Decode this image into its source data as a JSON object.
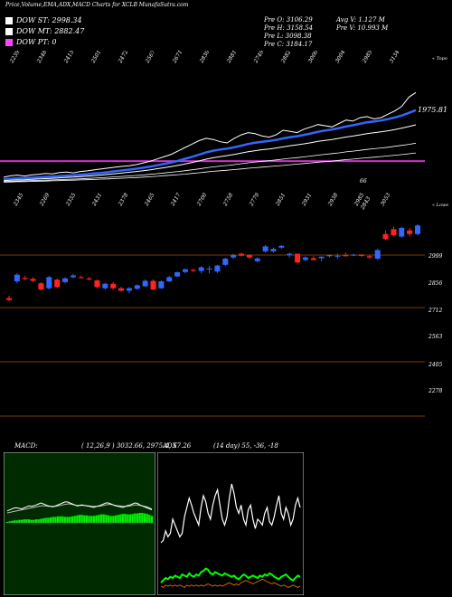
{
  "header": {
    "title": "Price,Volume,EMA,ADX,MACD Charts for XCLB MunafaSutra.com"
  },
  "legend": [
    {
      "label": "DOW ST: 2998.34",
      "color": "#ffffff"
    },
    {
      "label": "DOW MT: 2882.47",
      "color": "#ffffff"
    },
    {
      "label": "DOW PT: 0",
      "color": "#ff44ff"
    }
  ],
  "quote": {
    "open": "Pre O: 3106.29",
    "high": "Pre H: 3158.54",
    "low": "Pre L: 3098.38",
    "close": "Pre C: 3184.17",
    "avg_volume": "Avg V: 1.127 M",
    "volume": "Pre V: 10.993 M"
  },
  "chart_data": [
    {
      "type": "line",
      "panel": "ema",
      "title": "",
      "side_label": "« Topo",
      "last_value_label": "1975.81",
      "top_labels": [
        "2239",
        "2348",
        "2415",
        "2501",
        "2472",
        "2567",
        "2671",
        "2830",
        "2881",
        "2749",
        "2882",
        "3000",
        "3004",
        "2985",
        "3134"
      ],
      "extra_labels": [
        "66"
      ],
      "x": [
        1,
        2,
        3,
        4,
        5,
        6,
        7,
        8,
        9,
        10,
        11,
        12,
        13,
        14,
        15,
        16,
        17,
        18,
        19,
        20,
        21,
        22,
        23,
        24,
        25,
        26,
        27,
        28,
        29,
        30,
        31,
        32,
        33,
        34,
        35,
        36,
        37,
        38,
        39,
        40,
        41,
        42,
        43,
        44,
        45,
        46,
        47,
        48,
        49,
        50,
        51,
        52,
        53,
        54,
        55,
        56,
        57,
        58,
        59,
        60
      ],
      "series": [
        {
          "values": [
            2460,
            2472,
            2478,
            2470,
            2480,
            2485,
            2492,
            2488,
            2500,
            2505,
            2498,
            2510,
            2515,
            2525,
            2532,
            2540,
            2548,
            2555,
            2560,
            2570,
            2585,
            2600,
            2620,
            2640,
            2660,
            2690,
            2720,
            2750,
            2780,
            2800,
            2790,
            2770,
            2760,
            2800,
            2830,
            2850,
            2840,
            2820,
            2810,
            2830,
            2870,
            2860,
            2850,
            2880,
            2900,
            2920,
            2910,
            2900,
            2930,
            2960,
            2950,
            2980,
            2990,
            2970,
            2980,
            3010,
            3040,
            3080,
            3160,
            3200
          ]
        },
        {
          "values": [
            2442,
            2446,
            2450,
            2452,
            2455,
            2458,
            2462,
            2465,
            2469,
            2473,
            2476,
            2481,
            2486,
            2492,
            2498,
            2505,
            2512,
            2519,
            2526,
            2534,
            2543,
            2553,
            2564,
            2576,
            2589,
            2604,
            2621,
            2639,
            2658,
            2677,
            2692,
            2702,
            2710,
            2721,
            2735,
            2750,
            2762,
            2770,
            2777,
            2786,
            2799,
            2810,
            2818,
            2830,
            2843,
            2857,
            2868,
            2877,
            2889,
            2903,
            2914,
            2927,
            2940,
            2948,
            2956,
            2968,
            2982,
            2999,
            3022,
            3046
          ]
        },
        {
          "values": [
            2430,
            2433,
            2436,
            2438,
            2441,
            2444,
            2447,
            2450,
            2454,
            2458,
            2461,
            2465,
            2469,
            2474,
            2479,
            2485,
            2491,
            2497,
            2503,
            2510,
            2517,
            2525,
            2534,
            2543,
            2553,
            2564,
            2576,
            2589,
            2603,
            2617,
            2630,
            2640,
            2649,
            2659,
            2670,
            2682,
            2692,
            2700,
            2707,
            2715,
            2725,
            2735,
            2743,
            2752,
            2762,
            2773,
            2782,
            2790,
            2800,
            2811,
            2820,
            2830,
            2841,
            2849,
            2857,
            2866,
            2877,
            2889,
            2903,
            2918
          ]
        },
        {
          "values": [
            2422,
            2424,
            2426,
            2428,
            2430,
            2432,
            2434,
            2436,
            2439,
            2441,
            2443,
            2446,
            2449,
            2452,
            2455,
            2459,
            2463,
            2467,
            2471,
            2475,
            2480,
            2485,
            2491,
            2497,
            2503,
            2510,
            2517,
            2525,
            2533,
            2542,
            2550,
            2557,
            2563,
            2570,
            2578,
            2586,
            2593,
            2599,
            2605,
            2611,
            2618,
            2625,
            2631,
            2638,
            2645,
            2653,
            2660,
            2666,
            2673,
            2681,
            2688,
            2695,
            2703,
            2709,
            2715,
            2722,
            2730,
            2738,
            2747,
            2757
          ]
        },
        {
          "values": [
            2416,
            2418,
            2420,
            2421,
            2423,
            2425,
            2426,
            2428,
            2430,
            2432,
            2434,
            2436,
            2438,
            2440,
            2443,
            2445,
            2448,
            2451,
            2454,
            2457,
            2461,
            2464,
            2468,
            2473,
            2477,
            2482,
            2487,
            2493,
            2499,
            2505,
            2511,
            2516,
            2521,
            2526,
            2532,
            2538,
            2543,
            2548,
            2553,
            2558,
            2563,
            2569,
            2574,
            2579,
            2585,
            2591,
            2596,
            2601,
            2607,
            2613,
            2618,
            2624,
            2630,
            2635,
            2640,
            2646,
            2652,
            2658,
            2665,
            2672
          ]
        }
      ],
      "purple_line": 2600
    },
    {
      "type": "candlestick",
      "panel": "price",
      "side_label": "« Lowe",
      "top_labels": [
        "2345",
        "2269",
        "2355",
        "2431",
        "2378",
        "2465",
        "2417",
        "2700",
        "2758",
        "2779",
        "2851",
        "2931",
        "2938",
        "2985",
        "3053"
      ],
      "extra_labels": [
        "2843"
      ],
      "ylabels": [
        "2999",
        "2856",
        "2712",
        "2563",
        "2405",
        "2278"
      ],
      "ylim": [
        2200,
        3100
      ],
      "candles": [
        {
          "o": 2760,
          "h": 2770,
          "l": 2748,
          "c": 2752
        },
        {
          "o": 2828,
          "h": 2862,
          "l": 2820,
          "c": 2855
        },
        {
          "o": 2842,
          "h": 2850,
          "l": 2832,
          "c": 2838
        },
        {
          "o": 2838,
          "h": 2845,
          "l": 2825,
          "c": 2830
        },
        {
          "o": 2820,
          "h": 2825,
          "l": 2790,
          "c": 2795
        },
        {
          "o": 2800,
          "h": 2850,
          "l": 2795,
          "c": 2845
        },
        {
          "o": 2835,
          "h": 2840,
          "l": 2800,
          "c": 2805
        },
        {
          "o": 2825,
          "h": 2845,
          "l": 2820,
          "c": 2840
        },
        {
          "o": 2845,
          "h": 2858,
          "l": 2840,
          "c": 2852
        },
        {
          "o": 2845,
          "h": 2852,
          "l": 2840,
          "c": 2842
        },
        {
          "o": 2840,
          "h": 2846,
          "l": 2832,
          "c": 2836
        },
        {
          "o": 2832,
          "h": 2836,
          "l": 2800,
          "c": 2805
        },
        {
          "o": 2800,
          "h": 2822,
          "l": 2795,
          "c": 2818
        },
        {
          "o": 2818,
          "h": 2825,
          "l": 2795,
          "c": 2800
        },
        {
          "o": 2800,
          "h": 2806,
          "l": 2785,
          "c": 2790
        },
        {
          "o": 2790,
          "h": 2805,
          "l": 2780,
          "c": 2800
        },
        {
          "o": 2798,
          "h": 2815,
          "l": 2793,
          "c": 2812
        },
        {
          "o": 2808,
          "h": 2836,
          "l": 2805,
          "c": 2830
        },
        {
          "o": 2830,
          "h": 2836,
          "l": 2792,
          "c": 2795
        },
        {
          "o": 2800,
          "h": 2832,
          "l": 2797,
          "c": 2828
        },
        {
          "o": 2828,
          "h": 2850,
          "l": 2825,
          "c": 2845
        },
        {
          "o": 2848,
          "h": 2868,
          "l": 2845,
          "c": 2865
        },
        {
          "o": 2866,
          "h": 2880,
          "l": 2860,
          "c": 2877
        },
        {
          "o": 2874,
          "h": 2880,
          "l": 2866,
          "c": 2870
        },
        {
          "o": 2870,
          "h": 2890,
          "l": 2860,
          "c": 2885
        },
        {
          "o": 2880,
          "h": 2890,
          "l": 2860,
          "c": 2880
        },
        {
          "o": 2868,
          "h": 2895,
          "l": 2862,
          "c": 2892
        },
        {
          "o": 2895,
          "h": 2925,
          "l": 2890,
          "c": 2920
        },
        {
          "o": 2925,
          "h": 2940,
          "l": 2920,
          "c": 2935
        },
        {
          "o": 2940,
          "h": 2945,
          "l": 2930,
          "c": 2932
        },
        {
          "o": 2935,
          "h": 2938,
          "l": 2920,
          "c": 2925
        },
        {
          "o": 2910,
          "h": 2925,
          "l": 2905,
          "c": 2921
        },
        {
          "o": 2950,
          "h": 2975,
          "l": 2945,
          "c": 2970
        },
        {
          "o": 2950,
          "h": 2965,
          "l": 2945,
          "c": 2960
        },
        {
          "o": 2965,
          "h": 2975,
          "l": 2960,
          "c": 2972
        },
        {
          "o": 2935,
          "h": 2945,
          "l": 2925,
          "c": 2940
        },
        {
          "o": 2940,
          "h": 2942,
          "l": 2900,
          "c": 2905
        },
        {
          "o": 2915,
          "h": 2930,
          "l": 2910,
          "c": 2925
        },
        {
          "o": 2922,
          "h": 2930,
          "l": 2912,
          "c": 2915
        },
        {
          "o": 2922,
          "h": 2930,
          "l": 2910,
          "c": 2928
        },
        {
          "o": 2930,
          "h": 2938,
          "l": 2925,
          "c": 2935
        },
        {
          "o": 2930,
          "h": 2940,
          "l": 2920,
          "c": 2932
        },
        {
          "o": 2935,
          "h": 2945,
          "l": 2928,
          "c": 2930
        },
        {
          "o": 2935,
          "h": 2940,
          "l": 2930,
          "c": 2936
        },
        {
          "o": 2936,
          "h": 2940,
          "l": 2928,
          "c": 2931
        },
        {
          "o": 2930,
          "h": 2935,
          "l": 2920,
          "c": 2925
        },
        {
          "o": 2920,
          "h": 2960,
          "l": 2915,
          "c": 2955
        },
        {
          "o": 3020,
          "h": 3035,
          "l": 2995,
          "c": 3000
        },
        {
          "o": 3040,
          "h": 3050,
          "l": 3010,
          "c": 3015
        },
        {
          "o": 3010,
          "h": 3050,
          "l": 3005,
          "c": 3045
        },
        {
          "o": 3035,
          "h": 3045,
          "l": 3010,
          "c": 3020
        },
        {
          "o": 3020,
          "h": 3060,
          "l": 3015,
          "c": 3055
        }
      ]
    },
    {
      "type": "area",
      "panel": "macd",
      "title": "MACD:",
      "params": "( 12,26,9 ) 3032.66, 2975.4, 57.26",
      "histogram": [
        2,
        3,
        4,
        5,
        5,
        6,
        6,
        7,
        7,
        7,
        6,
        6,
        7,
        7,
        8,
        9,
        10,
        10,
        11,
        12,
        12,
        13,
        13,
        13,
        12,
        12,
        12,
        13,
        14,
        15,
        16,
        16,
        15,
        15,
        14,
        14,
        14,
        15,
        16,
        17,
        17,
        16,
        15,
        14,
        14,
        15,
        16,
        17,
        18,
        18,
        17,
        17,
        18,
        19,
        19,
        20,
        20,
        19,
        18,
        16,
        14
      ],
      "macd_line": [
        24,
        26,
        28,
        30,
        30,
        29,
        28,
        30,
        32,
        34,
        33,
        34,
        36,
        38,
        40,
        38,
        36,
        34,
        33,
        32,
        34,
        36,
        38,
        40,
        42,
        42,
        40,
        38,
        36,
        34,
        35,
        36,
        35,
        34,
        33,
        32,
        31,
        33,
        34,
        36,
        38,
        40,
        40,
        38,
        36,
        34,
        33,
        32,
        31,
        33,
        35,
        36,
        38,
        40,
        39,
        36,
        34,
        32,
        30,
        28,
        26
      ],
      "signal_line": [
        20,
        21,
        22,
        23,
        24,
        25,
        26,
        27,
        28,
        29,
        30,
        31,
        32,
        33,
        34,
        34,
        34,
        33,
        33,
        33,
        33,
        34,
        35,
        36,
        37,
        38,
        38,
        37,
        36,
        35,
        35,
        35,
        35,
        34,
        34,
        33,
        33,
        33,
        33,
        34,
        35,
        36,
        37,
        37,
        36,
        35,
        34,
        34,
        33,
        33,
        33,
        34,
        35,
        36,
        36,
        35,
        34,
        33,
        32,
        30,
        28
      ]
    },
    {
      "type": "line",
      "panel": "adx",
      "title": "ADX",
      "params": "(14 day) 55, -36, -18",
      "series": [
        {
          "color": "#ffffff",
          "values": [
            40,
            42,
            50,
            45,
            48,
            60,
            55,
            50,
            45,
            48,
            62,
            70,
            78,
            72,
            65,
            60,
            55,
            70,
            80,
            75,
            65,
            60,
            72,
            80,
            85,
            72,
            60,
            55,
            62,
            78,
            90,
            82,
            70,
            65,
            72,
            60,
            55,
            68,
            72,
            60,
            52,
            60,
            58,
            55,
            65,
            70,
            58,
            55,
            62,
            72,
            80,
            65,
            60,
            70,
            65,
            55,
            60,
            72,
            78,
            70
          ]
        },
        {
          "color": "#00ff00",
          "values": [
            6,
            8,
            10,
            9,
            11,
            10,
            12,
            11,
            10,
            13,
            12,
            11,
            14,
            12,
            11,
            13,
            12,
            15,
            16,
            18,
            17,
            14,
            13,
            15,
            14,
            13,
            12,
            14,
            13,
            12,
            11,
            12,
            10,
            9,
            11,
            13,
            12,
            10,
            11,
            12,
            11,
            10,
            12,
            11,
            13,
            12,
            14,
            13,
            11,
            10,
            9,
            11,
            12,
            13,
            11,
            9,
            8,
            10,
            12,
            11
          ]
        },
        {
          "color": "#cc6600",
          "values": [
            3,
            2,
            4,
            3,
            4,
            3,
            4,
            3,
            4,
            3,
            2,
            4,
            3,
            4,
            3,
            4,
            3,
            4,
            3,
            4,
            5,
            4,
            3,
            4,
            3,
            4,
            3,
            4,
            5,
            6,
            5,
            4,
            5,
            4,
            6,
            7,
            8,
            7,
            6,
            5,
            6,
            7,
            8,
            9,
            8,
            7,
            6,
            5,
            6,
            5,
            4,
            3,
            4,
            3,
            2,
            3,
            4,
            3,
            2,
            3
          ]
        }
      ]
    }
  ]
}
